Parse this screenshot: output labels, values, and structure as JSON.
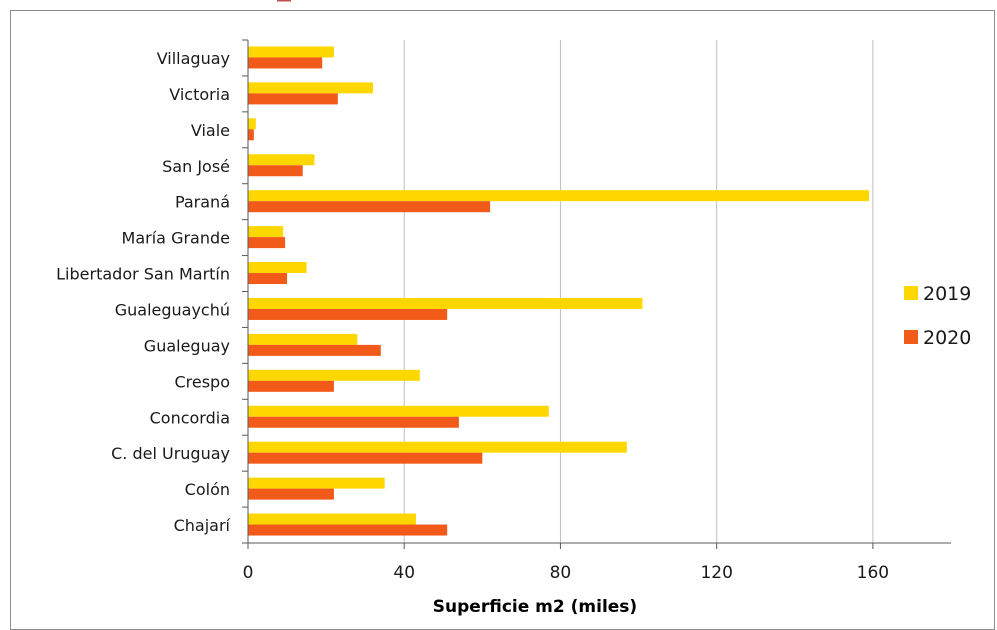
{
  "chart_data": {
    "type": "bar",
    "orientation": "horizontal",
    "categories": [
      "Villaguay",
      "Victoria",
      "Viale",
      "San José",
      "Paraná",
      "María Grande",
      "Libertador San Martín",
      "Gualeguaychú",
      "Gualeguay",
      "Crespo",
      "Concordia",
      "C. del Uruguay",
      "Colón",
      "Chajarí"
    ],
    "series": [
      {
        "name": "2019",
        "color": "#FFD700",
        "values": [
          22,
          32,
          2,
          17,
          159,
          9,
          15,
          101,
          28,
          44,
          77,
          97,
          35,
          43
        ]
      },
      {
        "name": "2020",
        "color": "#F25A1A",
        "values": [
          19,
          23,
          1.5,
          14,
          62,
          9.5,
          10,
          51,
          34,
          22,
          54,
          60,
          22,
          51
        ]
      }
    ],
    "title": "",
    "xlabel": "Superficie  m2 (miles)",
    "ylabel": "",
    "xlim": [
      0,
      180
    ],
    "xticks": [
      0,
      40,
      80,
      120,
      160
    ],
    "grid": true,
    "legend_position": "right"
  }
}
